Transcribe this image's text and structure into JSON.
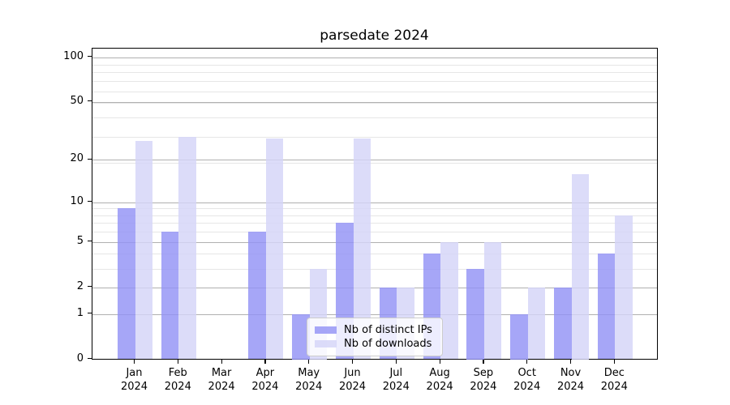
{
  "chart_data": {
    "type": "bar",
    "title": "parsedate 2024",
    "categories": [
      "Jan",
      "Feb",
      "Mar",
      "Apr",
      "May",
      "Jun",
      "Jul",
      "Aug",
      "Sep",
      "Oct",
      "Nov",
      "Dec"
    ],
    "x_year_label": "2024",
    "series": [
      {
        "name": "Nb of distinct IPs",
        "color": "rgba(147,147,245,0.82)",
        "values": [
          9,
          6,
          0,
          6,
          1,
          7,
          2,
          4,
          3,
          1,
          2,
          4
        ]
      },
      {
        "name": "Nb of downloads",
        "color": "rgba(212,212,248,0.82)",
        "values": [
          27,
          29,
          0,
          28,
          3,
          28,
          2,
          5,
          5,
          2,
          16,
          8
        ]
      }
    ],
    "yscale": "log10(1+x)",
    "ylim": [
      0,
      100
    ],
    "y_major_ticks": [
      0,
      1,
      2,
      5,
      10,
      20,
      50,
      100
    ],
    "y_minor_grid_values": [
      3,
      4,
      6,
      7,
      8,
      9,
      19,
      29,
      39,
      49,
      59,
      69,
      79,
      89
    ],
    "grid": "both",
    "legend_position": "lower-center"
  },
  "colors": {
    "background": "#ffffff",
    "grid_major": "#b0b0b0",
    "grid_minor": "#e6e6e6",
    "axis_spine": "#000000",
    "tick_text": "#000000",
    "title_text": "#000000",
    "legend_background": "rgba(255,255,255,0.8)",
    "legend_border": "#cccccc"
  }
}
